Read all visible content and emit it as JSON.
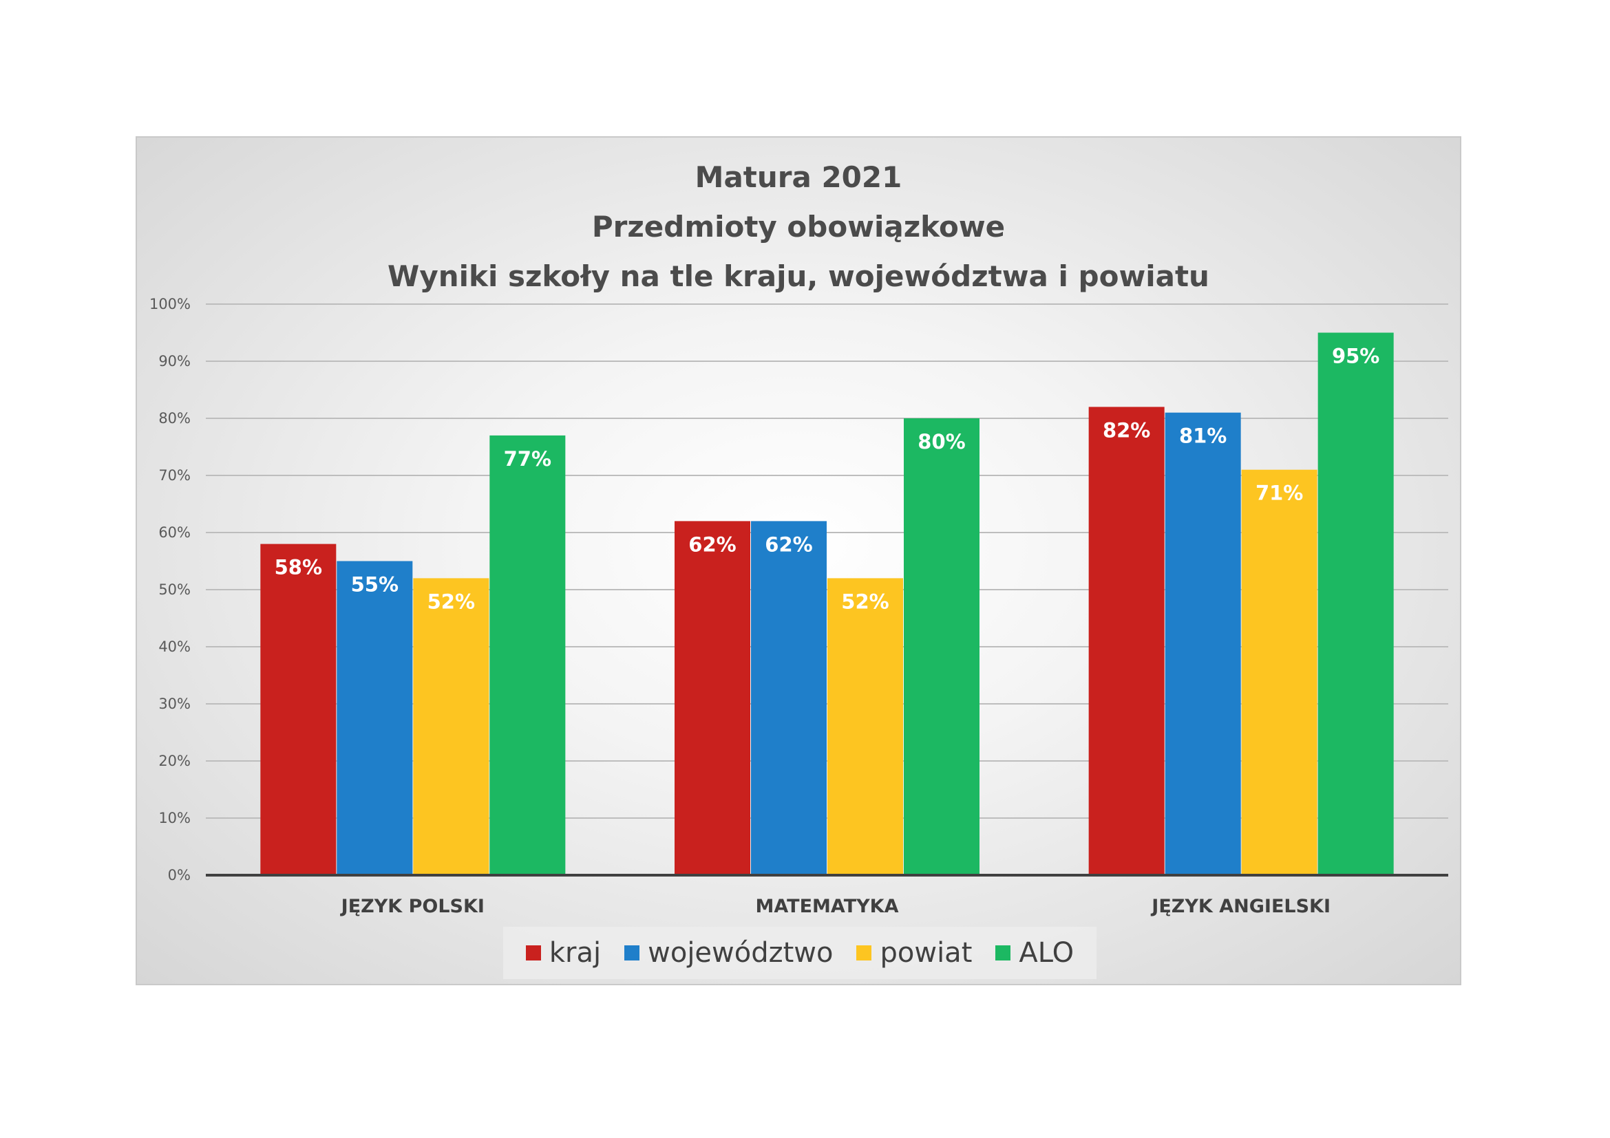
{
  "chart_data": {
    "type": "bar",
    "title_lines": [
      "Matura 2021",
      "Przedmioty obowiązkowe",
      "Wyniki szkoły na tle kraju, województwa i powiatu"
    ],
    "categories": [
      "JĘZYK POLSKI",
      "MATEMATYKA",
      "JĘZYK ANGIELSKI"
    ],
    "series": [
      {
        "name": "kraj",
        "color": "#c9211e",
        "values": [
          58,
          62,
          82
        ]
      },
      {
        "name": "województwo",
        "color": "#1f7fca",
        "values": [
          55,
          62,
          81
        ]
      },
      {
        "name": "powiat",
        "color": "#fdc521",
        "values": [
          52,
          52,
          71
        ]
      },
      {
        "name": "ALO",
        "color": "#1cb862",
        "values": [
          77,
          80,
          95
        ]
      }
    ],
    "value_suffix": "%",
    "yticks": [
      "0%",
      "10%",
      "20%",
      "30%",
      "40%",
      "50%",
      "60%",
      "70%",
      "80%",
      "90%",
      "100%"
    ],
    "ylim": [
      0,
      100
    ],
    "grid": true,
    "legend_position": "bottom",
    "data_labels": true
  }
}
